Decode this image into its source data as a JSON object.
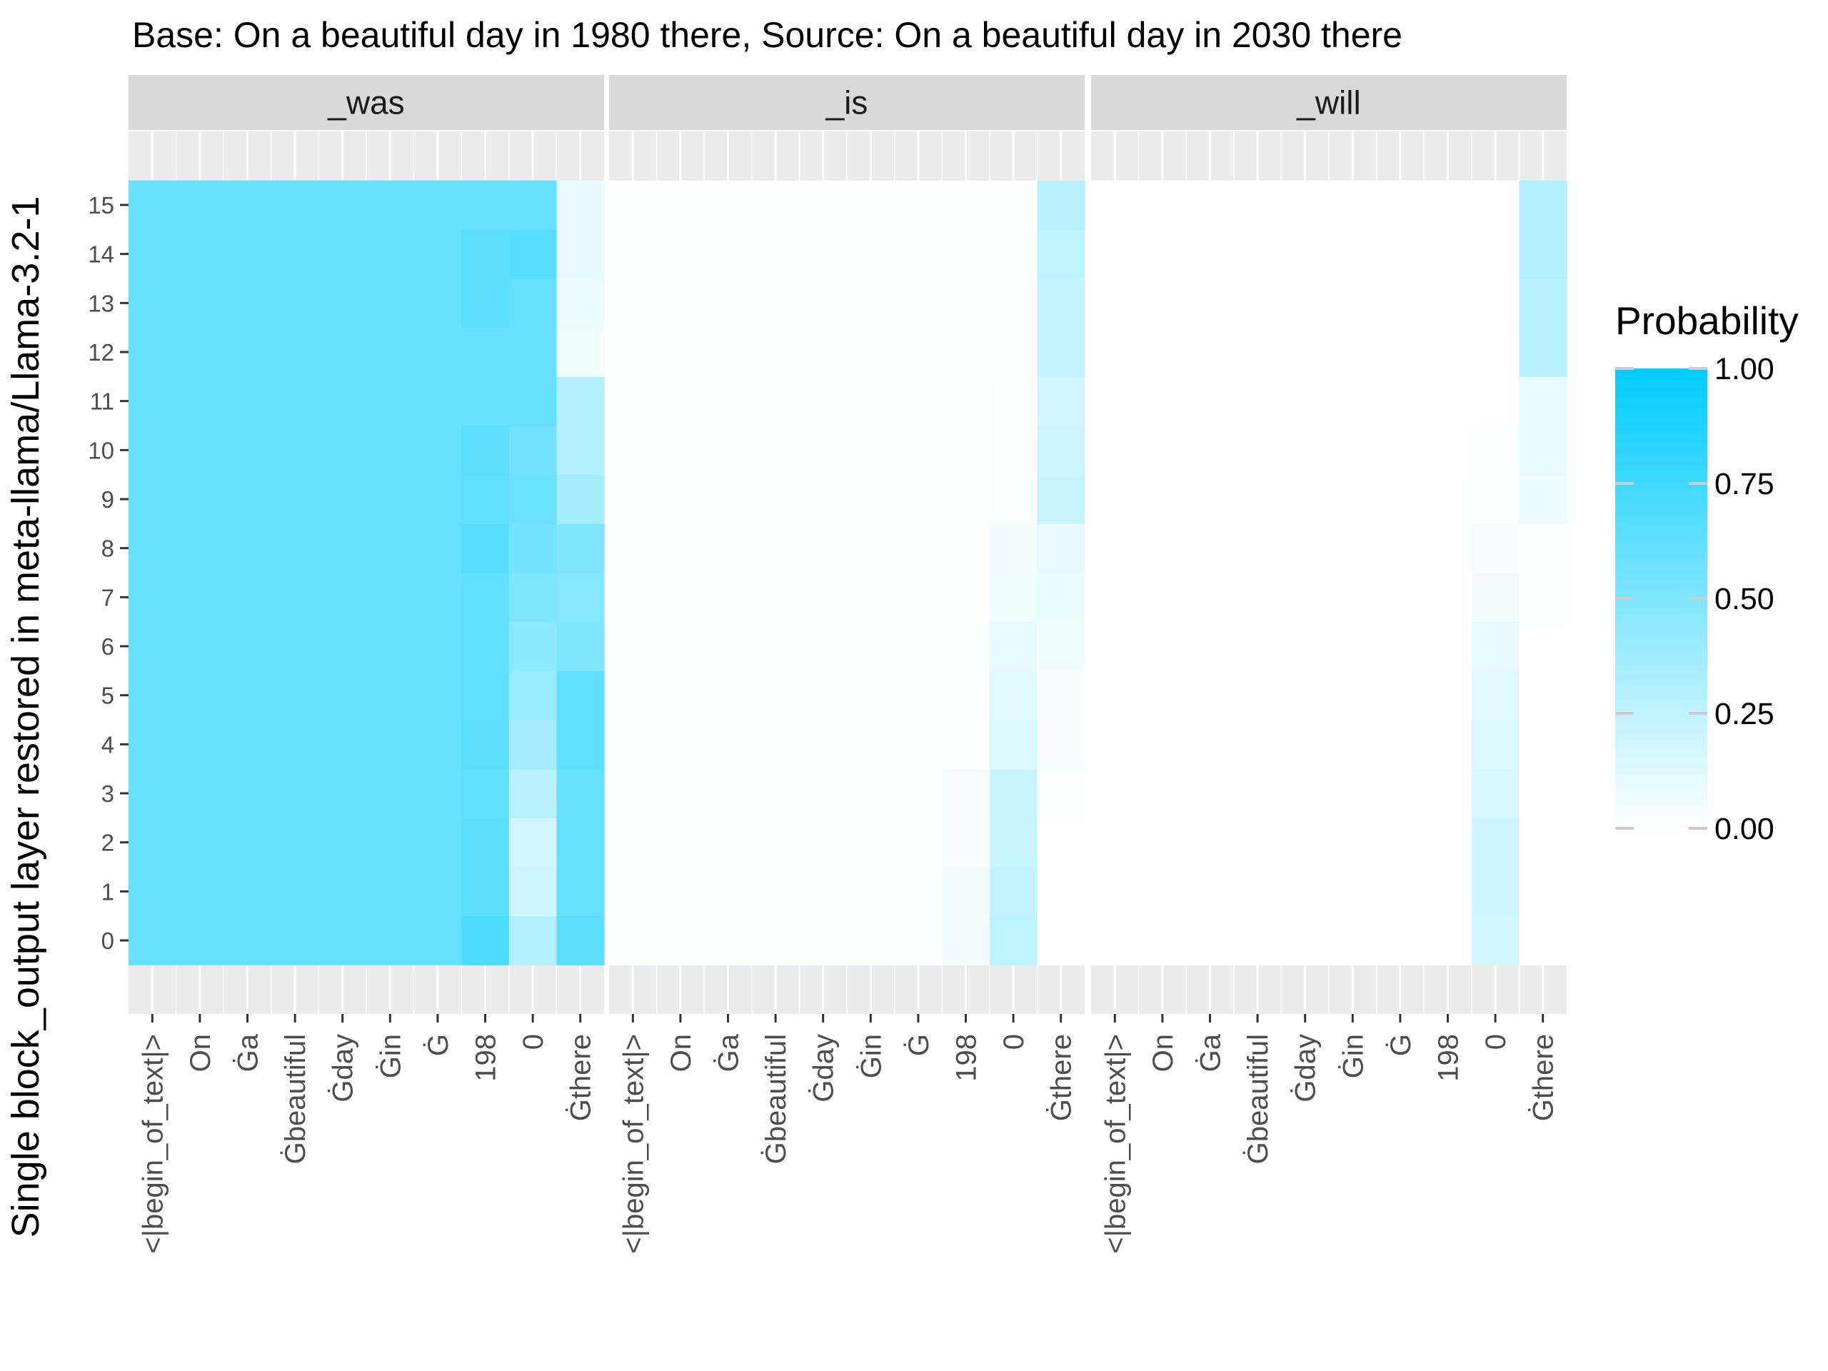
{
  "chart_data": {
    "type": "heatmap",
    "title": "Base: On a beautiful day in 1980 there, Source: On a beautiful day in 2030 there",
    "ylabel": "Single block_output layer restored in meta-llama/Llama-3.2-1",
    "xlabel": "",
    "x_tokens": [
      "<|begin_of_text|>",
      "On",
      "Ġa",
      "Ġbeautiful",
      "Ġday",
      "Ġin",
      "Ġ",
      "198",
      "0",
      "Ġthere"
    ],
    "y_layers": [
      0,
      1,
      2,
      3,
      4,
      5,
      6,
      7,
      8,
      9,
      10,
      11,
      12,
      13,
      14,
      15
    ],
    "y_range": [
      0,
      15
    ],
    "grid": true,
    "legend": {
      "title": "Probability",
      "position": "right",
      "ticks": [
        "0.00",
        "0.25",
        "0.50",
        "0.75",
        "1.00"
      ],
      "low_color": "#ffffff",
      "high_color": "#00ccff"
    },
    "panels": [
      {
        "label": "_was",
        "values": [
          [
            0.6,
            0.6,
            0.6,
            0.6,
            0.6,
            0.6,
            0.6,
            0.7,
            0.3,
            0.64
          ],
          [
            0.6,
            0.6,
            0.6,
            0.6,
            0.6,
            0.6,
            0.6,
            0.64,
            0.2,
            0.6
          ],
          [
            0.6,
            0.6,
            0.6,
            0.6,
            0.6,
            0.6,
            0.6,
            0.64,
            0.18,
            0.6
          ],
          [
            0.6,
            0.6,
            0.6,
            0.6,
            0.6,
            0.6,
            0.6,
            0.62,
            0.28,
            0.6
          ],
          [
            0.6,
            0.6,
            0.6,
            0.6,
            0.6,
            0.6,
            0.6,
            0.64,
            0.36,
            0.62
          ],
          [
            0.6,
            0.6,
            0.6,
            0.6,
            0.6,
            0.6,
            0.6,
            0.62,
            0.4,
            0.62
          ],
          [
            0.6,
            0.6,
            0.6,
            0.6,
            0.6,
            0.6,
            0.6,
            0.62,
            0.46,
            0.5
          ],
          [
            0.6,
            0.6,
            0.6,
            0.6,
            0.6,
            0.6,
            0.6,
            0.62,
            0.5,
            0.48
          ],
          [
            0.6,
            0.6,
            0.6,
            0.6,
            0.6,
            0.6,
            0.6,
            0.66,
            0.55,
            0.5
          ],
          [
            0.6,
            0.6,
            0.6,
            0.6,
            0.6,
            0.6,
            0.6,
            0.62,
            0.58,
            0.36
          ],
          [
            0.6,
            0.6,
            0.6,
            0.6,
            0.6,
            0.6,
            0.6,
            0.64,
            0.56,
            0.3
          ],
          [
            0.6,
            0.6,
            0.6,
            0.6,
            0.6,
            0.6,
            0.6,
            0.6,
            0.6,
            0.3
          ],
          [
            0.6,
            0.6,
            0.6,
            0.6,
            0.6,
            0.6,
            0.6,
            0.6,
            0.6,
            0.06
          ],
          [
            0.6,
            0.6,
            0.6,
            0.6,
            0.6,
            0.6,
            0.6,
            0.64,
            0.6,
            0.08
          ],
          [
            0.6,
            0.6,
            0.6,
            0.6,
            0.6,
            0.6,
            0.6,
            0.64,
            0.66,
            0.1
          ],
          [
            0.6,
            0.6,
            0.6,
            0.6,
            0.6,
            0.6,
            0.6,
            0.6,
            0.6,
            0.1
          ]
        ]
      },
      {
        "label": "_is",
        "values": [
          [
            0.01,
            0.01,
            0.01,
            0.01,
            0.01,
            0.01,
            0.01,
            0.05,
            0.26,
            0.0
          ],
          [
            0.01,
            0.01,
            0.01,
            0.01,
            0.01,
            0.01,
            0.01,
            0.05,
            0.24,
            0.0
          ],
          [
            0.01,
            0.01,
            0.01,
            0.01,
            0.01,
            0.01,
            0.01,
            0.04,
            0.22,
            0.0
          ],
          [
            0.01,
            0.01,
            0.01,
            0.01,
            0.01,
            0.01,
            0.01,
            0.03,
            0.22,
            0.02
          ],
          [
            0.01,
            0.01,
            0.01,
            0.01,
            0.01,
            0.01,
            0.01,
            0.02,
            0.14,
            0.04
          ],
          [
            0.01,
            0.01,
            0.01,
            0.01,
            0.01,
            0.01,
            0.01,
            0.02,
            0.12,
            0.04
          ],
          [
            0.01,
            0.01,
            0.01,
            0.01,
            0.01,
            0.01,
            0.01,
            0.02,
            0.09,
            0.06
          ],
          [
            0.01,
            0.01,
            0.01,
            0.01,
            0.01,
            0.01,
            0.01,
            0.01,
            0.06,
            0.08
          ],
          [
            0.01,
            0.01,
            0.01,
            0.01,
            0.01,
            0.01,
            0.01,
            0.01,
            0.05,
            0.1
          ],
          [
            0.01,
            0.01,
            0.01,
            0.01,
            0.01,
            0.01,
            0.01,
            0.01,
            0.02,
            0.22
          ],
          [
            0.01,
            0.01,
            0.01,
            0.01,
            0.01,
            0.01,
            0.01,
            0.01,
            0.02,
            0.2
          ],
          [
            0.01,
            0.01,
            0.01,
            0.01,
            0.01,
            0.01,
            0.01,
            0.01,
            0.02,
            0.18
          ],
          [
            0.01,
            0.01,
            0.01,
            0.01,
            0.01,
            0.01,
            0.01,
            0.01,
            0.01,
            0.24
          ],
          [
            0.01,
            0.01,
            0.01,
            0.01,
            0.01,
            0.01,
            0.01,
            0.01,
            0.01,
            0.24
          ],
          [
            0.01,
            0.01,
            0.01,
            0.01,
            0.01,
            0.01,
            0.01,
            0.01,
            0.01,
            0.26
          ],
          [
            0.01,
            0.01,
            0.01,
            0.01,
            0.01,
            0.01,
            0.01,
            0.01,
            0.01,
            0.28
          ]
        ]
      },
      {
        "label": "_will",
        "values": [
          [
            0.0,
            0.0,
            0.0,
            0.0,
            0.0,
            0.0,
            0.0,
            0.0,
            0.18,
            0.0
          ],
          [
            0.0,
            0.0,
            0.0,
            0.0,
            0.0,
            0.0,
            0.0,
            0.0,
            0.2,
            0.0
          ],
          [
            0.0,
            0.0,
            0.0,
            0.0,
            0.0,
            0.0,
            0.0,
            0.0,
            0.2,
            0.0
          ],
          [
            0.0,
            0.0,
            0.0,
            0.0,
            0.0,
            0.0,
            0.0,
            0.0,
            0.16,
            0.0
          ],
          [
            0.0,
            0.0,
            0.0,
            0.0,
            0.0,
            0.0,
            0.0,
            0.0,
            0.14,
            0.0
          ],
          [
            0.0,
            0.0,
            0.0,
            0.0,
            0.0,
            0.0,
            0.0,
            0.0,
            0.12,
            0.0
          ],
          [
            0.0,
            0.0,
            0.0,
            0.0,
            0.0,
            0.0,
            0.0,
            0.0,
            0.1,
            0.0
          ],
          [
            0.0,
            0.0,
            0.0,
            0.0,
            0.0,
            0.0,
            0.0,
            0.0,
            0.05,
            0.01
          ],
          [
            0.0,
            0.0,
            0.0,
            0.0,
            0.0,
            0.0,
            0.0,
            0.0,
            0.03,
            0.01
          ],
          [
            0.0,
            0.0,
            0.0,
            0.0,
            0.0,
            0.0,
            0.0,
            0.0,
            0.02,
            0.08
          ],
          [
            0.0,
            0.0,
            0.0,
            0.0,
            0.0,
            0.0,
            0.0,
            0.0,
            0.01,
            0.1
          ],
          [
            0.0,
            0.0,
            0.0,
            0.0,
            0.0,
            0.0,
            0.0,
            0.0,
            0.0,
            0.1
          ],
          [
            0.0,
            0.0,
            0.0,
            0.0,
            0.0,
            0.0,
            0.0,
            0.0,
            0.0,
            0.28
          ],
          [
            0.0,
            0.0,
            0.0,
            0.0,
            0.0,
            0.0,
            0.0,
            0.0,
            0.0,
            0.28
          ],
          [
            0.0,
            0.0,
            0.0,
            0.0,
            0.0,
            0.0,
            0.0,
            0.0,
            0.0,
            0.3
          ],
          [
            0.0,
            0.0,
            0.0,
            0.0,
            0.0,
            0.0,
            0.0,
            0.0,
            0.0,
            0.3
          ]
        ]
      }
    ]
  }
}
